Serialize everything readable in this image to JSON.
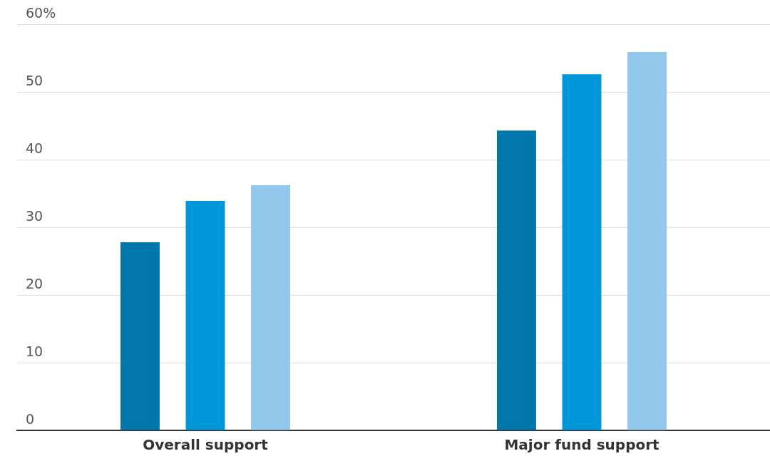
{
  "chart_data": {
    "type": "bar",
    "categories": [
      "Overall support",
      "Major fund support"
    ],
    "series": [
      {
        "color": "#0077aa",
        "values": [
          27.8,
          44.3
        ]
      },
      {
        "color": "#0096d8",
        "values": [
          33.9,
          52.6
        ]
      },
      {
        "color": "#92c8ec",
        "values": [
          36.2,
          55.9
        ]
      }
    ],
    "ylim": [
      0,
      60
    ],
    "yticks": [
      0,
      10,
      20,
      30,
      40,
      50,
      {
        "value": 60,
        "label": "60%"
      }
    ],
    "grid": "y",
    "legend": false
  }
}
